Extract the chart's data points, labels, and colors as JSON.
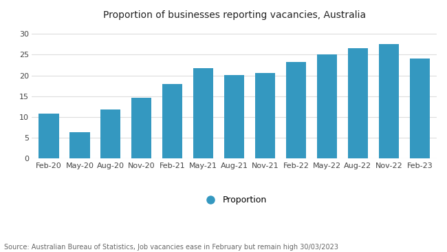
{
  "title": "Proportion of businesses reporting vacancies, Australia",
  "categories": [
    "Feb-20",
    "May-20",
    "Aug-20",
    "Nov-20",
    "Feb-21",
    "May-21",
    "Aug-21",
    "Nov-21",
    "Feb-22",
    "May-22",
    "Aug-22",
    "Nov-22",
    "Feb-23"
  ],
  "values": [
    10.8,
    6.4,
    11.8,
    14.6,
    18.0,
    21.7,
    20.1,
    20.6,
    23.3,
    25.0,
    26.5,
    27.6,
    24.1
  ],
  "bar_color": "#3498c0",
  "ylim": [
    0,
    32
  ],
  "yticks": [
    0,
    5,
    10,
    15,
    20,
    25,
    30
  ],
  "legend_label": "Proportion",
  "source_text": "Source: Australian Bureau of Statistics, Job vacancies ease in February but remain high 30/03/2023",
  "background_color": "#ffffff",
  "grid_color": "#dddddd",
  "title_fontsize": 10,
  "tick_fontsize": 8,
  "source_fontsize": 7
}
